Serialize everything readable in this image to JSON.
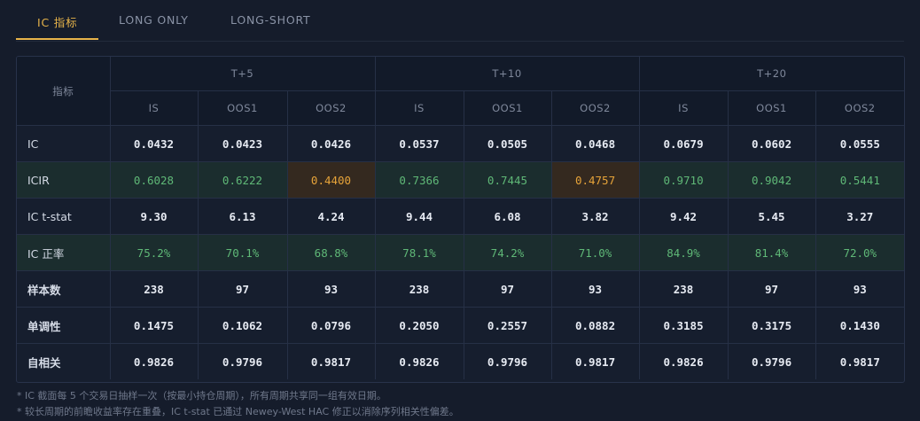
{
  "tabs": [
    {
      "label": "IC 指标",
      "active": true
    },
    {
      "label": "LONG ONLY",
      "active": false
    },
    {
      "label": "LONG-SHORT",
      "active": false
    }
  ],
  "table": {
    "corner_label": "指标",
    "horizons": [
      "T+5",
      "T+10",
      "T+20"
    ],
    "samples": [
      "IS",
      "OOS1",
      "OOS2"
    ],
    "rows": [
      {
        "label": "IC",
        "values": [
          "0.0432",
          "0.0423",
          "0.0426",
          "0.0537",
          "0.0505",
          "0.0468",
          "0.0679",
          "0.0602",
          "0.0555"
        ]
      },
      {
        "label": "ICIR",
        "values": [
          "0.6028",
          "0.6222",
          "0.4400",
          "0.7366",
          "0.7445",
          "0.4757",
          "0.9710",
          "0.9042",
          "0.5441"
        ]
      },
      {
        "label": "IC t-stat",
        "values": [
          "9.30",
          "6.13",
          "4.24",
          "9.44",
          "6.08",
          "3.82",
          "9.42",
          "5.45",
          "3.27"
        ]
      },
      {
        "label": "IC 正率",
        "values": [
          "75.2%",
          "70.1%",
          "68.8%",
          "78.1%",
          "74.2%",
          "71.0%",
          "84.9%",
          "81.4%",
          "72.0%"
        ]
      },
      {
        "label": "样本数",
        "values": [
          "238",
          "97",
          "93",
          "238",
          "97",
          "93",
          "238",
          "97",
          "93"
        ]
      },
      {
        "label": "单调性",
        "values": [
          "0.1475",
          "0.1062",
          "0.0796",
          "0.2050",
          "0.2557",
          "0.0882",
          "0.3185",
          "0.3175",
          "0.1430"
        ]
      },
      {
        "label": "自相关",
        "values": [
          "0.9826",
          "0.9796",
          "0.9817",
          "0.9826",
          "0.9796",
          "0.9817",
          "0.9826",
          "0.9796",
          "0.9817"
        ]
      }
    ]
  },
  "footnotes": [
    "* IC 截面每 5 个交易日抽样一次（按最小持仓周期），所有周期共享同一组有效日期。",
    "* 较长周期的前瞻收益率存在重叠，IC t-stat 已通过 Newey-West HAC 修正以消除序列相关性偏差。"
  ],
  "colors": {
    "accent": "#e6b34a",
    "positive_text": "#5fb877",
    "positive_bg": "#1b2d2e",
    "warning_text": "#e6a339",
    "warning_bg": "#34291f"
  }
}
